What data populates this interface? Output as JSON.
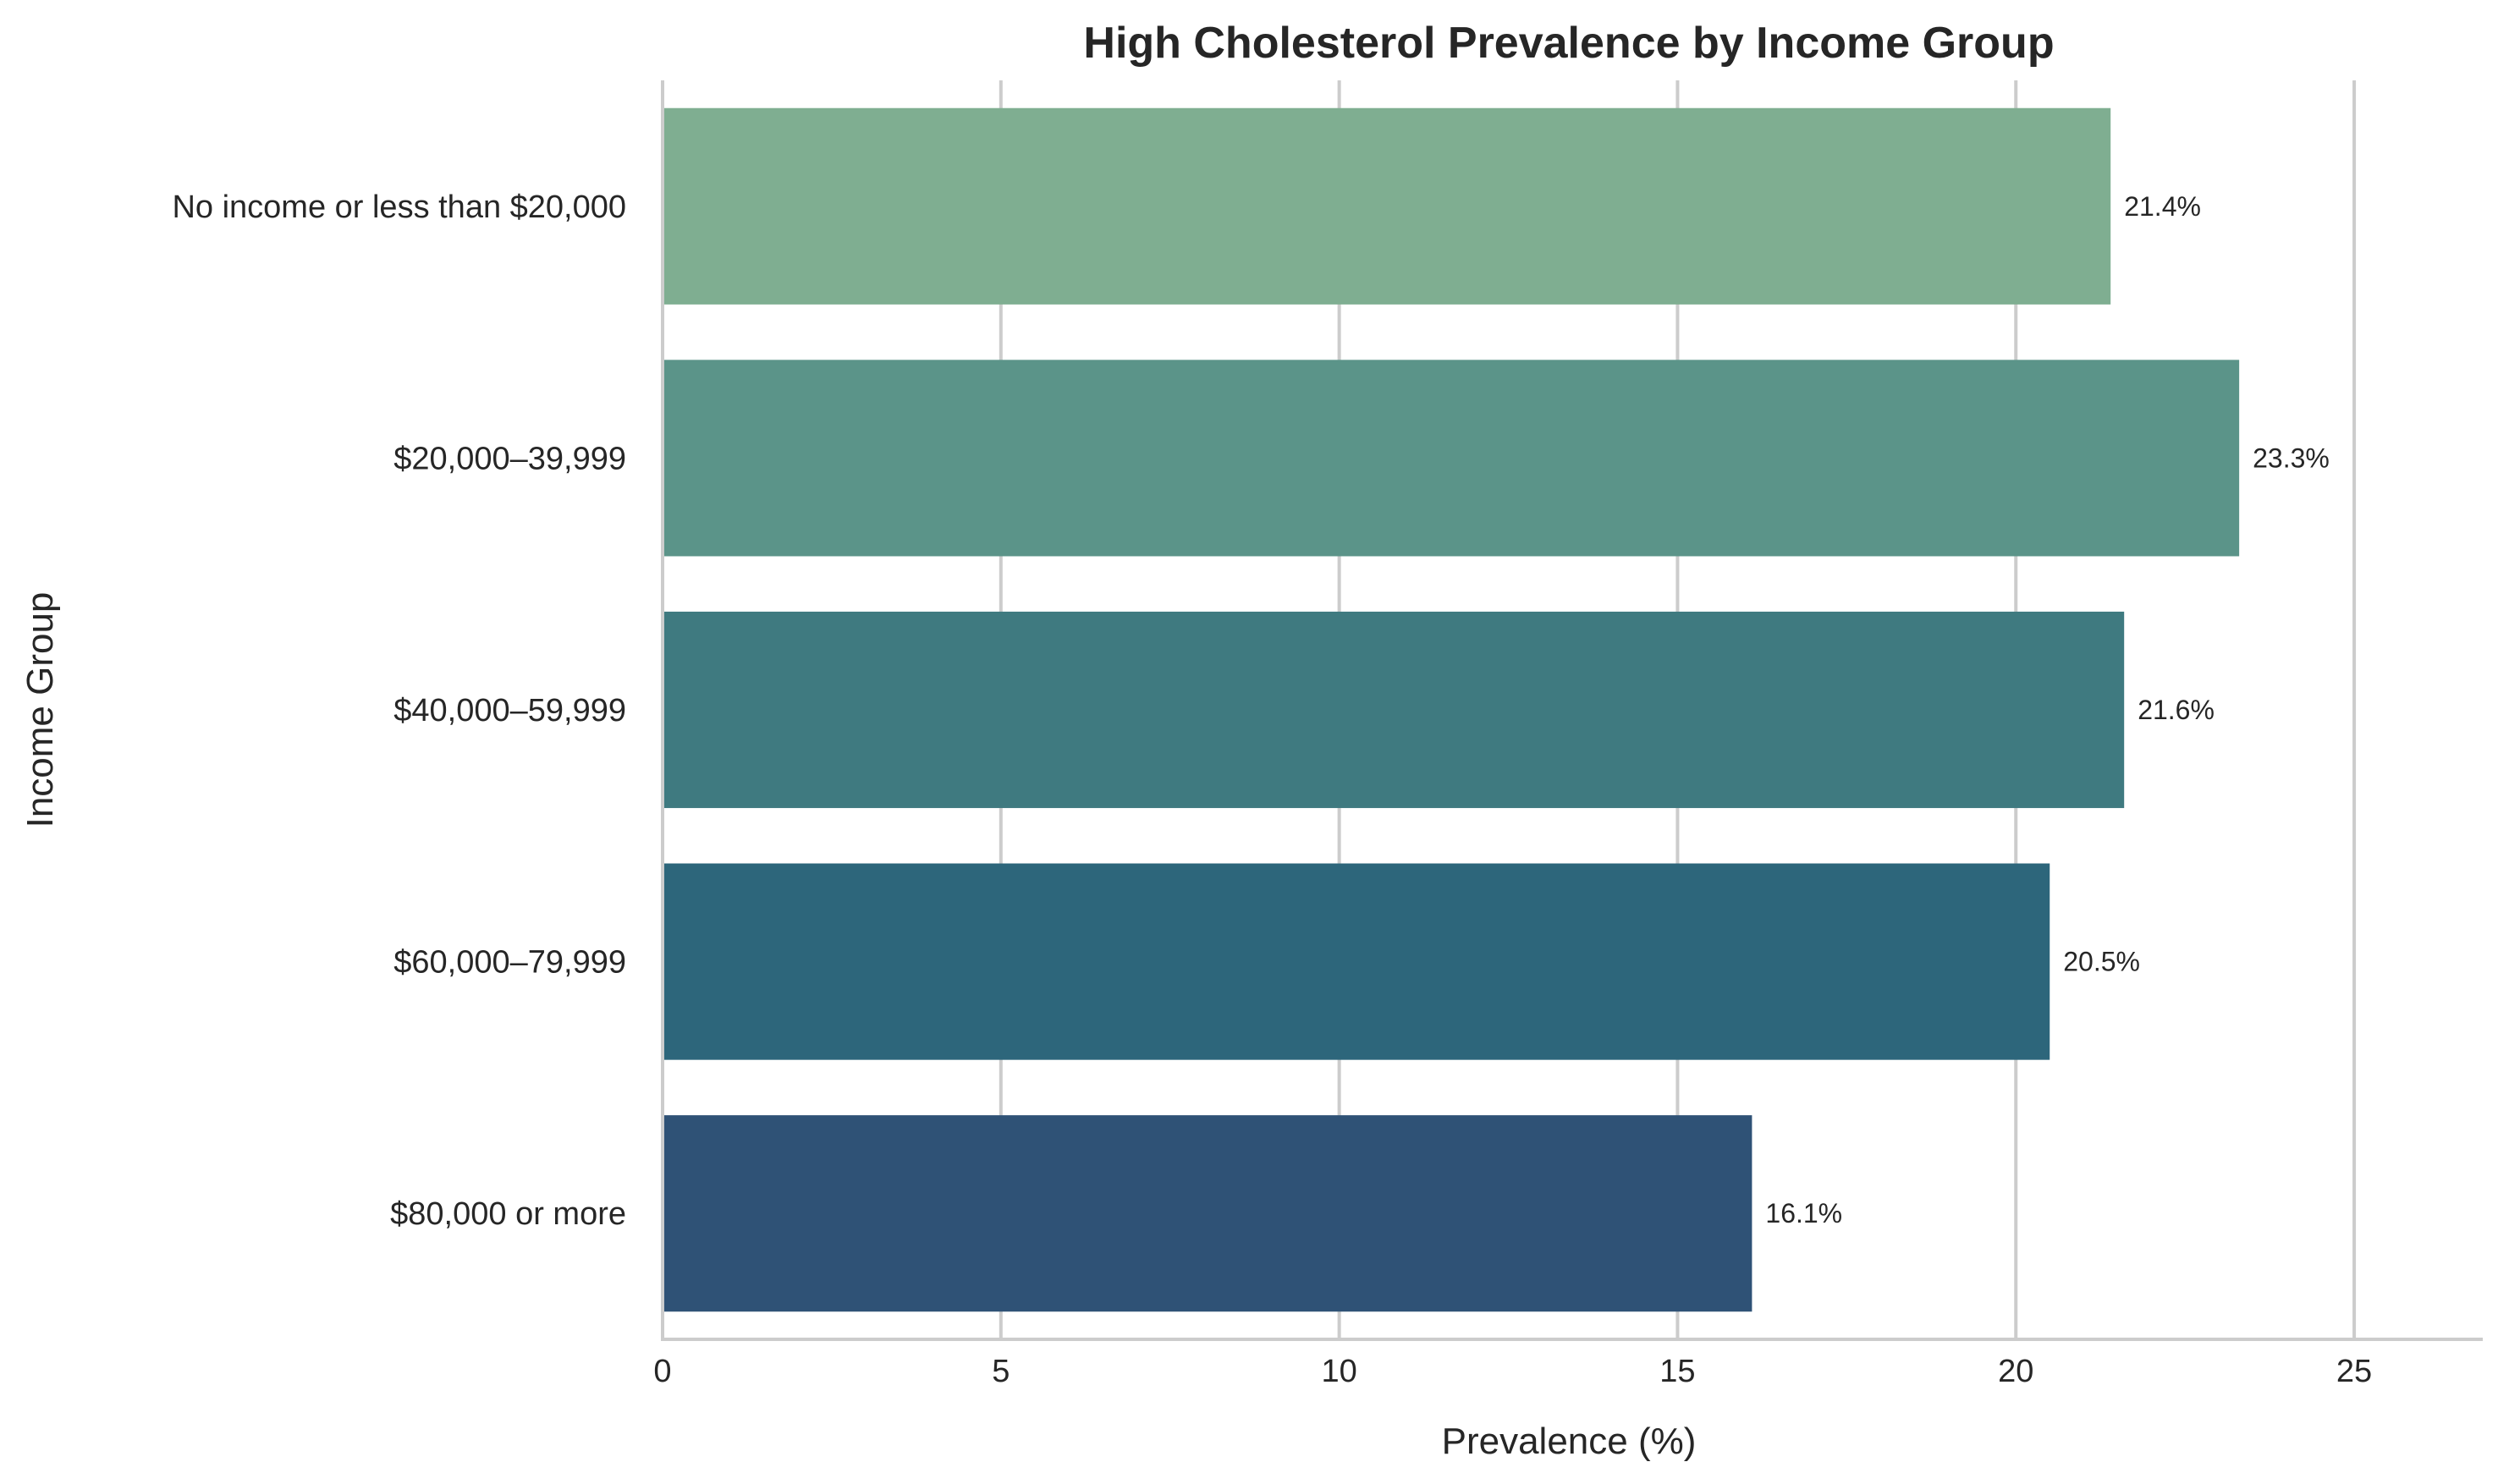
{
  "chart_data": {
    "type": "bar",
    "orientation": "horizontal",
    "title": "High Cholesterol Prevalence by Income Group",
    "xlabel": "Prevalence (%)",
    "ylabel": "Income Group",
    "categories": [
      "No income or less than $20,000",
      "$20,000–39,999",
      "$40,000–59,999",
      "$60,000–79,999",
      "$80,000 or more"
    ],
    "values": [
      21.4,
      23.3,
      21.6,
      20.5,
      16.1
    ],
    "data_labels": [
      "21.4%",
      "23.3%",
      "21.6%",
      "20.5%",
      "16.1%"
    ],
    "colors": [
      "#7fae91",
      "#5b9489",
      "#3f7a80",
      "#2d667b",
      "#2f5276"
    ],
    "xlim": [
      0,
      26.9
    ],
    "xticks": [
      0,
      5,
      10,
      15,
      20,
      25
    ],
    "xtick_labels": [
      "0",
      "5",
      "10",
      "15",
      "20",
      "25"
    ],
    "grid": "vertical",
    "legend": "none"
  }
}
